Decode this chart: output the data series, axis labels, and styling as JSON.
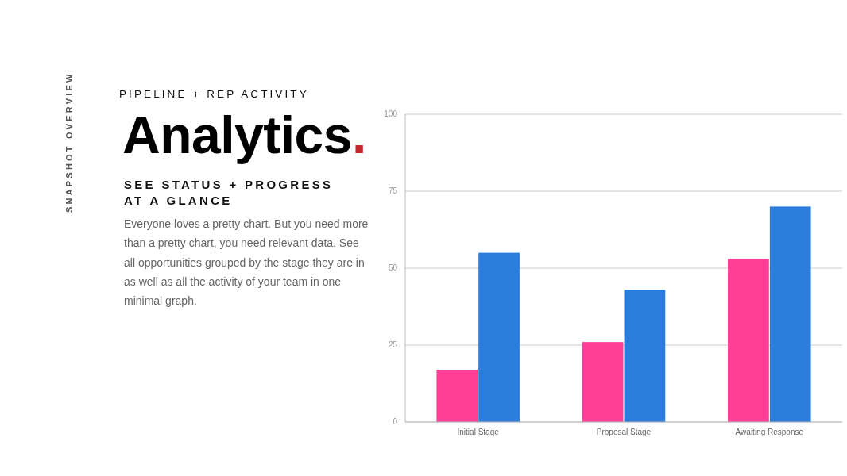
{
  "chart_data": {
    "type": "bar",
    "title": "Analytics.",
    "subtitle": "PIPELINE + REP ACTIVITY",
    "annotations": [
      "SNAPSHOT OVERVIEW",
      "SEE STATUS + PROGRESS AT A GLANCE",
      "Everyone loves a pretty chart. But you need more than a pretty chart, you need relevant data. See all opportunities grouped by the stage they are in as well as all the activity of your team in one minimal graph."
    ],
    "categories": [
      "Initial Stage",
      "Proposal Stage",
      "Awaiting Response"
    ],
    "series": [
      {
        "color": "#ff3f95",
        "values": [
          17,
          26,
          53
        ]
      },
      {
        "color": "#2a7ddc",
        "values": [
          55,
          43,
          70
        ]
      }
    ],
    "ylim": [
      0,
      100
    ],
    "yticks": [
      0,
      25,
      50,
      75,
      100
    ],
    "grid": "y"
  }
}
